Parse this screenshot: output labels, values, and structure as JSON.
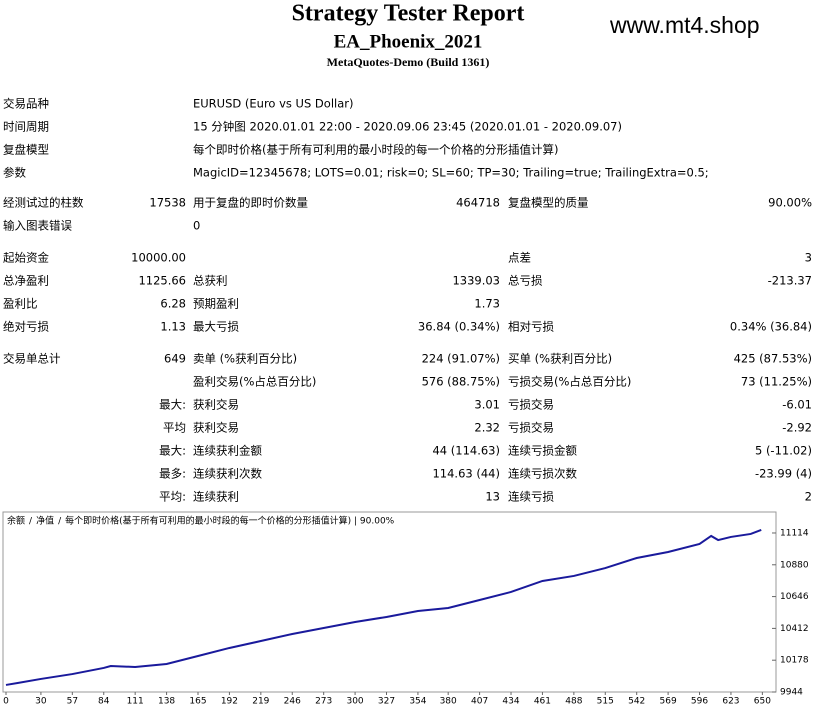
{
  "header": {
    "title": "Strategy Tester Report",
    "subtitle": "EA_Phoenix_2021",
    "build": "MetaQuotes-Demo (Build 1361)",
    "watermark": "www.mt4.shop"
  },
  "table": {
    "rows": [
      [
        "交易品种",
        "EURUSD (Euro vs US Dollar)"
      ],
      [
        "时间周期",
        "15 分钟图 2020.01.01 22:00 - 2020.09.06 23:45 (2020.01.01 - 2020.09.07)"
      ],
      [
        "复盘模型",
        "每个即时价格(基于所有可利用的最小时段的每一个价格的分形插值计算)"
      ],
      [
        "参数",
        "MagicID=12345678; LOTS=0.01; risk=0; SL=60; TP=30; Trailing=true; TrailingExtra=0.5;"
      ],
      [
        "经测试过的柱数",
        "17538",
        "用于复盘的即时价数量",
        "464718",
        "复盘模型的质量",
        "90.00%"
      ],
      [
        "输入图表错误",
        "0"
      ],
      [
        "起始资金",
        "10000.00",
        null,
        null,
        "点差",
        "3"
      ],
      [
        "总净盈利",
        "1125.66",
        "总获利",
        "1339.03",
        "总亏损",
        "-213.37"
      ],
      [
        "盈利比",
        "6.28",
        "预期盈利",
        "1.73"
      ],
      [
        "绝对亏损",
        "1.13",
        "最大亏损",
        "36.84 (0.34%)",
        "相对亏损",
        "0.34% (36.84)"
      ],
      [
        "交易单总计",
        "649",
        "卖单 (%获利百分比)",
        "224 (91.07%)",
        "买单 (%获利百分比)",
        "425 (87.53%)"
      ],
      [
        null,
        null,
        "盈利交易(%占总百分比)",
        "576 (88.75%)",
        "亏损交易(%占总百分比)",
        "73 (11.25%)"
      ],
      [
        null,
        "最大:",
        "获利交易",
        "3.01",
        "亏损交易",
        "-6.01"
      ],
      [
        null,
        "平均",
        "获利交易",
        "2.32",
        "亏损交易",
        "-2.92"
      ],
      [
        null,
        "最大:",
        "连续获利金额",
        "44 (114.63)",
        "连续亏损金额",
        "5 (-11.02)"
      ],
      [
        null,
        "最多:",
        "连续获利次数",
        "114.63 (44)",
        "连续亏损次数",
        "-23.99 (4)"
      ],
      [
        null,
        "平均:",
        "连续获利",
        "13",
        "连续亏损",
        "2"
      ]
    ]
  },
  "chart_data": {
    "type": "line",
    "separator": "/",
    "model_note": "每个即时价格(基于所有可利用的最小时段的每一个价格的分形插值计算) | 90.00%",
    "x": [
      0,
      10,
      30,
      57,
      84,
      90,
      111,
      138,
      165,
      192,
      219,
      246,
      273,
      300,
      327,
      354,
      380,
      407,
      434,
      461,
      488,
      515,
      542,
      569,
      596,
      606,
      612,
      623,
      640,
      649
    ],
    "series": [
      {
        "name": "净值",
        "color": "#2e8b2e",
        "values": [
          9996,
          10010,
          10040,
          10076,
          10121,
          10135,
          10128,
          10150,
          10209,
          10268,
          10319,
          10371,
          10415,
          10459,
          10496,
          10540,
          10562,
          10621,
          10680,
          10761,
          10798,
          10856,
          10930,
          10974,
          11033,
          11092,
          11062,
          11085,
          11107,
          11136
        ]
      },
      {
        "name": "余额",
        "color": "#1a1a9c",
        "values": [
          9996,
          10010,
          10040,
          10076,
          10121,
          10135,
          10128,
          10150,
          10209,
          10268,
          10319,
          10371,
          10415,
          10459,
          10496,
          10540,
          10562,
          10621,
          10680,
          10761,
          10798,
          10856,
          10930,
          10974,
          11033,
          11092,
          11062,
          11085,
          11107,
          11136
        ]
      }
    ],
    "xlim": [
      0,
      660
    ],
    "ylim": [
      9944,
      11261
    ],
    "xticks": [
      0,
      30,
      57,
      84,
      111,
      138,
      165,
      192,
      219,
      246,
      273,
      300,
      327,
      354,
      380,
      407,
      434,
      461,
      488,
      515,
      542,
      569,
      596,
      623,
      650
    ],
    "yticks": [
      9944,
      10178,
      10412,
      10646,
      10880,
      11114
    ]
  }
}
